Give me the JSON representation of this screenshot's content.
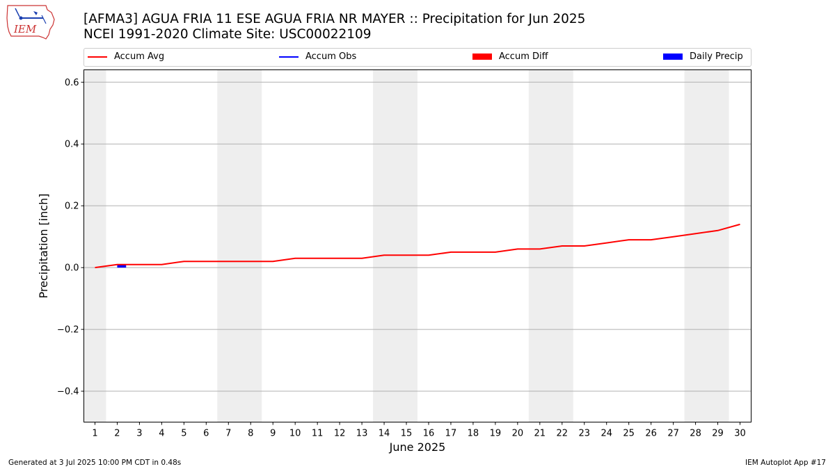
{
  "header": {
    "title_line1": "[AFMA3] AGUA FRIA 11 ESE AGUA FRIA NR MAYER :: Precipitation for Jun 2025",
    "title_line2": "NCEI 1991-2020 Climate Site: USC00022109"
  },
  "logo": {
    "text": "IEM",
    "icon": "iem-logo-icon"
  },
  "legend": {
    "items": [
      {
        "label": "Accum Avg",
        "color": "#ff0000",
        "kind": "line"
      },
      {
        "label": "Accum Obs",
        "color": "#0000ff",
        "kind": "line"
      },
      {
        "label": "Accum Diff",
        "color": "#ff0000",
        "kind": "box"
      },
      {
        "label": "Daily Precip",
        "color": "#0000ff",
        "kind": "box"
      }
    ]
  },
  "footer": {
    "left": "Generated at 3 Jul 2025 10:00 PM CDT in 0.48s",
    "right": "IEM Autoplot App #17"
  },
  "chart_data": {
    "type": "line",
    "xlabel": "June 2025",
    "ylabel": "Precipitation [inch]",
    "xlim": [
      0.5,
      30.5
    ],
    "ylim": [
      -0.5,
      0.64
    ],
    "yticks": [
      -0.4,
      -0.2,
      0.0,
      0.2,
      0.4,
      0.6
    ],
    "ytick_labels": [
      "−0.4",
      "−0.2",
      "0.0",
      "0.2",
      "0.4",
      "0.6"
    ],
    "x": [
      1,
      2,
      3,
      4,
      5,
      6,
      7,
      8,
      9,
      10,
      11,
      12,
      13,
      14,
      15,
      16,
      17,
      18,
      19,
      20,
      21,
      22,
      23,
      24,
      25,
      26,
      27,
      28,
      29,
      30
    ],
    "grid": "horizontal",
    "weekend_shading": [
      [
        0.5,
        1.5
      ],
      [
        6.5,
        8.5
      ],
      [
        13.5,
        15.5
      ],
      [
        20.5,
        22.5
      ],
      [
        27.5,
        29.5
      ]
    ],
    "series": [
      {
        "name": "Accum Avg",
        "color": "#ff0000",
        "values": [
          0.0,
          0.01,
          0.01,
          0.01,
          0.02,
          0.02,
          0.02,
          0.02,
          0.02,
          0.03,
          0.03,
          0.03,
          0.03,
          0.04,
          0.04,
          0.04,
          0.05,
          0.05,
          0.05,
          0.06,
          0.06,
          0.07,
          0.07,
          0.08,
          0.09,
          0.09,
          0.1,
          0.11,
          0.12,
          0.14
        ]
      },
      {
        "name": "Daily Precip",
        "type": "bar",
        "color": "#0000ff",
        "x": [
          2.2
        ],
        "values": [
          0.01
        ]
      }
    ]
  }
}
